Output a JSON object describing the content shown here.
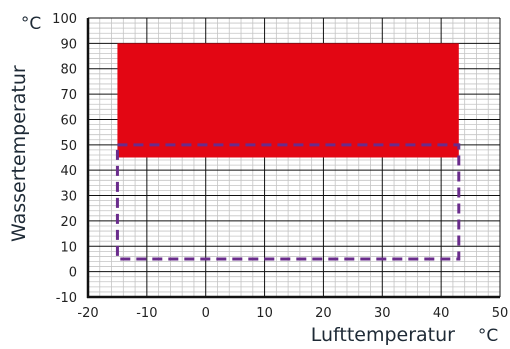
{
  "chart_data": {
    "type": "area",
    "xlabel": "Lufttemperatur",
    "x_unit": "°C",
    "ylabel": "Wassertemperatur",
    "y_unit": "°C",
    "xlim": [
      -20,
      50
    ],
    "ylim": [
      -10,
      100
    ],
    "x_ticks": [
      -20,
      -10,
      0,
      10,
      20,
      30,
      40,
      50
    ],
    "y_ticks": [
      -10,
      0,
      10,
      20,
      30,
      40,
      50,
      60,
      70,
      80,
      90,
      100
    ],
    "grid": true,
    "regions": [
      {
        "style": "filled",
        "color": "#e30613",
        "x": [
          -15,
          43
        ],
        "y": [
          45,
          90
        ]
      },
      {
        "style": "dashed-outline",
        "color": "#6a2c8c",
        "x": [
          -15,
          43
        ],
        "y": [
          5,
          50
        ]
      }
    ]
  }
}
